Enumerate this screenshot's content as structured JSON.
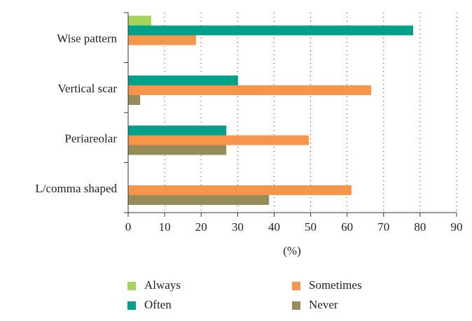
{
  "chart_data": {
    "type": "bar",
    "orientation": "horizontal",
    "x_label": "(%)",
    "categories": [
      "Wise pattern",
      "Vertical scar",
      "Periareolar",
      "L/comma shaped"
    ],
    "series": [
      {
        "name": "Always",
        "color": "#a5d25a",
        "values": [
          6.3,
          null,
          null,
          null
        ]
      },
      {
        "name": "Often",
        "color": "#00a08a",
        "values": [
          78.1,
          30.1,
          26.9,
          null
        ]
      },
      {
        "name": "Sometimes",
        "color": "#f7964a",
        "values": [
          18.6,
          66.6,
          49.5,
          61.2
        ]
      },
      {
        "name": "Never",
        "color": "#968c5a",
        "values": [
          null,
          3.3,
          26.9,
          38.6
        ]
      }
    ],
    "xlim": [
      0,
      90
    ],
    "xticks": [
      0,
      10,
      20,
      30,
      40,
      50,
      60,
      70,
      80,
      90
    ],
    "grid": true
  }
}
